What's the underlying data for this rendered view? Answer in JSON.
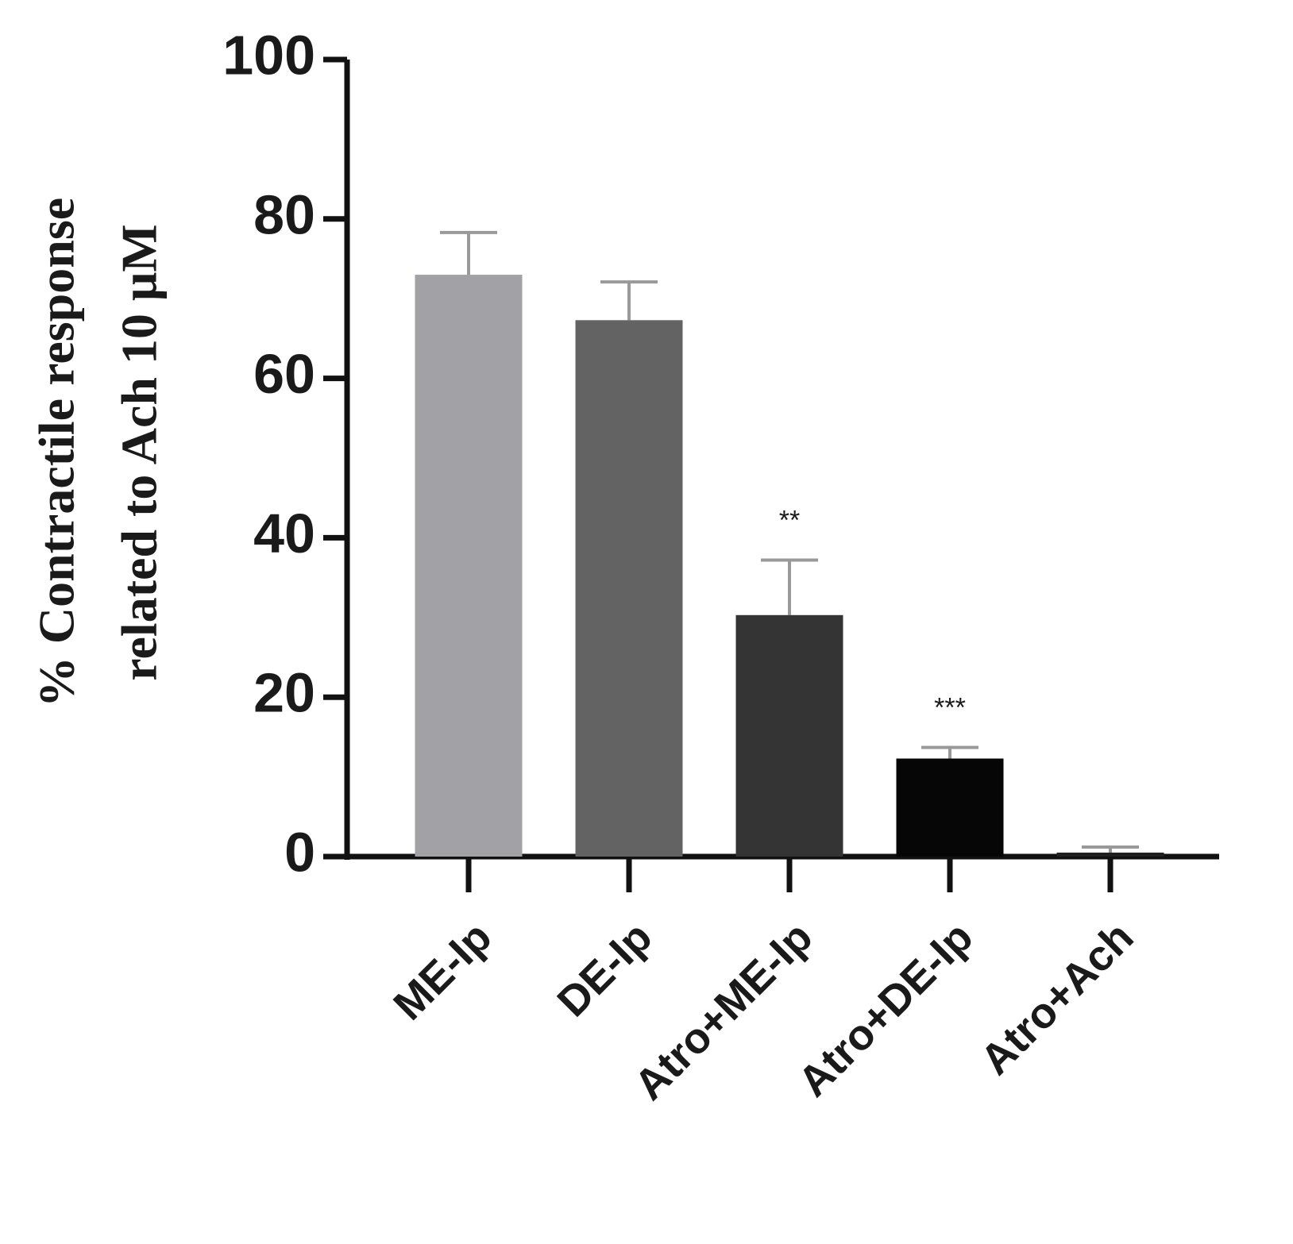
{
  "chart_data": {
    "type": "bar",
    "y_label": [
      "% Contractile response",
      "related to Ach 10 μM"
    ],
    "categories": [
      "ME-Ip",
      "DE-Ip",
      "Atro+ME-Ip",
      "Atro+DE-Ip",
      "Atro+Ach"
    ],
    "values": [
      73,
      67.3,
      30.3,
      12.3,
      0.5
    ],
    "errors": [
      5.3,
      4.8,
      6.9,
      1.4,
      0.7
    ],
    "colors": [
      "#a1a1a6",
      "#636363",
      "#343434",
      "#060606",
      "#202020"
    ],
    "ylim": [
      0,
      100
    ],
    "yticks": [
      0,
      20,
      40,
      60,
      80,
      100
    ],
    "grid": false,
    "annotations": [
      {
        "text": "**",
        "category": "Atro+ME-Ip"
      },
      {
        "text": "***",
        "category": "Atro+DE-Ip"
      }
    ]
  }
}
